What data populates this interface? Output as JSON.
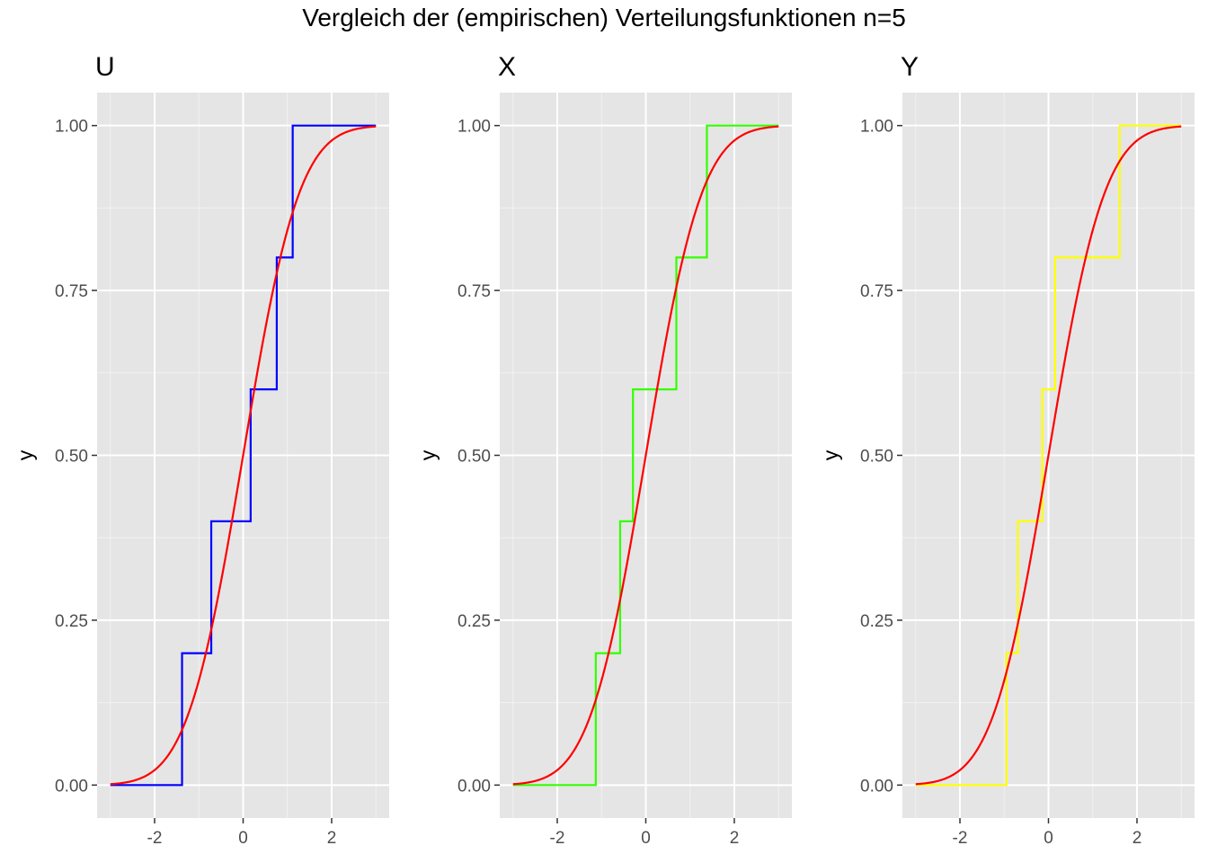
{
  "title": "Vergleich der (empirischen) Verteilungsfunktionen n=5",
  "chart_data": [
    {
      "type": "line",
      "subtitle": "U",
      "ylabel": "y",
      "xlabel": "",
      "xlim": [
        -3.3,
        3.3
      ],
      "ylim": [
        -0.05,
        1.05
      ],
      "x_ticks": [
        -2,
        0,
        2
      ],
      "x_tick_labels": [
        "-2",
        "0",
        "2"
      ],
      "y_ticks": [
        0,
        0.25,
        0.5,
        0.75,
        1
      ],
      "y_tick_labels": [
        "0.00",
        "0.25",
        "0.50",
        "0.75",
        "1.00"
      ],
      "grid": true,
      "series": [
        {
          "kind": "ecdf",
          "color": "#0000ff",
          "x_range": [
            -3,
            3
          ],
          "jumps": [
            -1.38,
            -0.72,
            0.17,
            0.76,
            1.12
          ],
          "step_height": 0.2
        },
        {
          "kind": "normal_cdf",
          "color": "#ff0000",
          "x_range": [
            -3,
            3
          ]
        }
      ]
    },
    {
      "type": "line",
      "subtitle": "X",
      "ylabel": "y",
      "xlabel": "",
      "xlim": [
        -3.3,
        3.3
      ],
      "ylim": [
        -0.05,
        1.05
      ],
      "x_ticks": [
        -2,
        0,
        2
      ],
      "x_tick_labels": [
        "-2",
        "0",
        "2"
      ],
      "y_ticks": [
        0,
        0.25,
        0.5,
        0.75,
        1
      ],
      "y_tick_labels": [
        "0.00",
        "0.25",
        "0.50",
        "0.75",
        "1.00"
      ],
      "grid": true,
      "series": [
        {
          "kind": "ecdf",
          "color": "#33ff00",
          "x_range": [
            -3,
            3
          ],
          "jumps": [
            -1.13,
            -0.58,
            -0.29,
            0.69,
            1.38
          ],
          "step_height": 0.2
        },
        {
          "kind": "normal_cdf",
          "color": "#ff0000",
          "x_range": [
            -3,
            3
          ]
        }
      ]
    },
    {
      "type": "line",
      "subtitle": "Y",
      "ylabel": "y",
      "xlabel": "",
      "xlim": [
        -3.3,
        3.3
      ],
      "ylim": [
        -0.05,
        1.05
      ],
      "x_ticks": [
        -2,
        0,
        2
      ],
      "x_tick_labels": [
        "-2",
        "0",
        "2"
      ],
      "y_ticks": [
        0,
        0.25,
        0.5,
        0.75,
        1
      ],
      "y_tick_labels": [
        "0.00",
        "0.25",
        "0.50",
        "0.75",
        "1.00"
      ],
      "grid": true,
      "series": [
        {
          "kind": "ecdf",
          "color": "#ffff00",
          "x_range": [
            -3,
            3
          ],
          "jumps": [
            -0.95,
            -0.69,
            -0.14,
            0.15,
            1.61
          ],
          "step_height": 0.2
        },
        {
          "kind": "normal_cdf",
          "color": "#ff0000",
          "x_range": [
            -3,
            3
          ]
        }
      ]
    }
  ]
}
